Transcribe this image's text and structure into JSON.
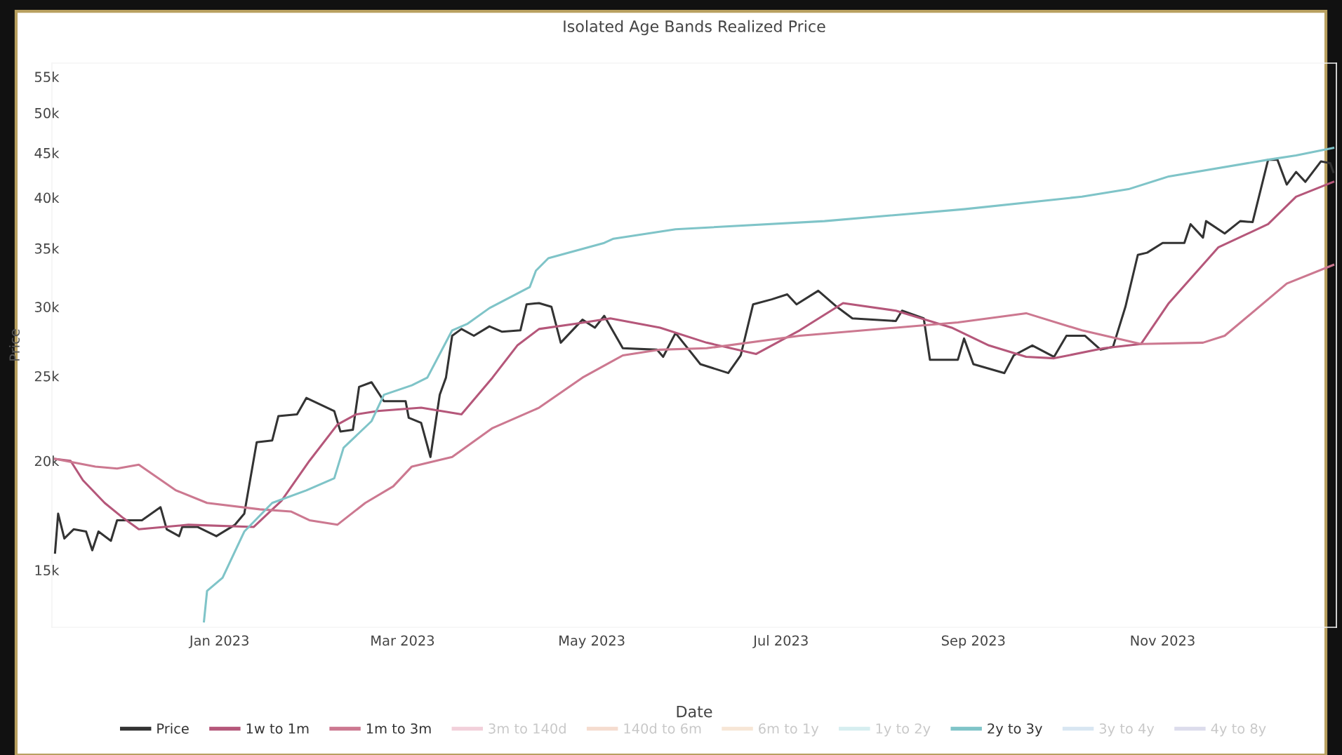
{
  "chart_data": {
    "type": "line",
    "title": "Isolated Age Bands Realized Price",
    "xlabel": "Date",
    "ylabel": "Price",
    "log": "y",
    "grid": false,
    "legend": "bottom",
    "marker": "none",
    "line_style": "solid",
    "xlim": [
      "2022-11-08",
      "2023-12-27"
    ],
    "xticks": [
      {
        "value": "2023-01-01",
        "label": "Jan 2023"
      },
      {
        "value": "2023-03-01",
        "label": "Mar 2023"
      },
      {
        "value": "2023-05-01",
        "label": "May 2023"
      },
      {
        "value": "2023-07-01",
        "label": "Jul 2023"
      },
      {
        "value": "2023-09-01",
        "label": "Sep 2023"
      },
      {
        "value": "2023-11-01",
        "label": "Nov 2023"
      }
    ],
    "ylim": [
      12900,
      57000
    ],
    "yticks": [
      {
        "value": 15000,
        "label": "15k"
      },
      {
        "value": 20000,
        "label": "20k"
      },
      {
        "value": 25000,
        "label": "25k"
      },
      {
        "value": 30000,
        "label": "30k"
      },
      {
        "value": 35000,
        "label": "35k"
      },
      {
        "value": 40000,
        "label": "40k"
      },
      {
        "value": 45000,
        "label": "45k"
      },
      {
        "value": 50000,
        "label": "50k"
      },
      {
        "value": 55000,
        "label": "55k"
      }
    ],
    "series": [
      {
        "name": "Price",
        "color": "#333333",
        "x": [
          "2022-11-09",
          "2022-11-10",
          "2022-11-12",
          "2022-11-15",
          "2022-11-19",
          "2022-11-21",
          "2022-11-23",
          "2022-11-27",
          "2022-11-29",
          "2022-12-07",
          "2022-12-13",
          "2022-12-15",
          "2022-12-19",
          "2022-12-20",
          "2022-12-25",
          "2022-12-31",
          "2023-01-06",
          "2023-01-09",
          "2023-01-13",
          "2023-01-18",
          "2023-01-20",
          "2023-01-26",
          "2023-01-29",
          "2023-02-07",
          "2023-02-09",
          "2023-02-13",
          "2023-02-15",
          "2023-02-19",
          "2023-02-23",
          "2023-03-02",
          "2023-03-03",
          "2023-03-07",
          "2023-03-10",
          "2023-03-13",
          "2023-03-15",
          "2023-03-17",
          "2023-03-20",
          "2023-03-24",
          "2023-03-29",
          "2023-04-02",
          "2023-04-08",
          "2023-04-10",
          "2023-04-14",
          "2023-04-18",
          "2023-04-21",
          "2023-04-28",
          "2023-05-02",
          "2023-05-05",
          "2023-05-11",
          "2023-05-22",
          "2023-05-24",
          "2023-05-28",
          "2023-06-05",
          "2023-06-14",
          "2023-06-18",
          "2023-06-22",
          "2023-06-28",
          "2023-07-03",
          "2023-07-06",
          "2023-07-13",
          "2023-07-19",
          "2023-07-24",
          "2023-08-07",
          "2023-08-09",
          "2023-08-16",
          "2023-08-18",
          "2023-08-27",
          "2023-08-29",
          "2023-09-01",
          "2023-09-11",
          "2023-09-14",
          "2023-09-20",
          "2023-09-27",
          "2023-10-01",
          "2023-10-07",
          "2023-10-12",
          "2023-10-16",
          "2023-10-20",
          "2023-10-24",
          "2023-10-27",
          "2023-11-01",
          "2023-11-08",
          "2023-11-10",
          "2023-11-14",
          "2023-11-15",
          "2023-11-21",
          "2023-11-26",
          "2023-11-30",
          "2023-12-05",
          "2023-12-08",
          "2023-12-11",
          "2023-12-14",
          "2023-12-17",
          "2023-12-22",
          "2023-12-25",
          "2023-12-26"
        ],
        "values": [
          15700,
          17400,
          16300,
          16700,
          16600,
          15800,
          16600,
          16200,
          17100,
          17100,
          17700,
          16700,
          16400,
          16800,
          16800,
          16400,
          16900,
          17400,
          21000,
          21100,
          22500,
          22600,
          23600,
          22800,
          21600,
          21700,
          24300,
          24600,
          23400,
          23400,
          22400,
          22100,
          20200,
          23800,
          24900,
          27800,
          28300,
          27800,
          28500,
          28100,
          28200,
          30200,
          30300,
          30000,
          27300,
          29000,
          28400,
          29300,
          26900,
          26800,
          26300,
          28000,
          25800,
          25200,
          26400,
          30200,
          30600,
          31000,
          30200,
          31300,
          30000,
          29100,
          28900,
          29700,
          29100,
          26100,
          26100,
          27600,
          25800,
          25200,
          26400,
          27100,
          26300,
          27800,
          27800,
          26800,
          27000,
          30000,
          34400,
          34600,
          35500,
          35500,
          37300,
          36000,
          37600,
          36400,
          37600,
          37500,
          44200,
          44200,
          41400,
          42800,
          41700,
          44000,
          43800,
          42800
        ]
      },
      {
        "name": "1w to 1m",
        "color": "#b5577a",
        "x": [
          "2022-11-09",
          "2022-11-14",
          "2022-11-18",
          "2022-11-25",
          "2022-12-01",
          "2022-12-06",
          "2022-12-22",
          "2023-01-12",
          "2023-01-21",
          "2023-01-30",
          "2023-02-08",
          "2023-02-14",
          "2023-02-21",
          "2023-03-07",
          "2023-03-20",
          "2023-03-30",
          "2023-04-07",
          "2023-04-14",
          "2023-04-26",
          "2023-05-07",
          "2023-05-23",
          "2023-06-07",
          "2023-06-23",
          "2023-07-07",
          "2023-07-21",
          "2023-08-07",
          "2023-08-25",
          "2023-09-06",
          "2023-09-18",
          "2023-09-27",
          "2023-10-13",
          "2023-10-25",
          "2023-11-03",
          "2023-11-19",
          "2023-12-05",
          "2023-12-14",
          "2023-12-26"
        ],
        "values": [
          20100,
          20000,
          19000,
          17900,
          17200,
          16700,
          16900,
          16800,
          18000,
          20000,
          22000,
          22600,
          22800,
          23000,
          22600,
          24900,
          27100,
          28300,
          28700,
          29100,
          28400,
          27300,
          26500,
          28200,
          30300,
          29700,
          28400,
          27100,
          26300,
          26200,
          26900,
          27200,
          30300,
          35100,
          37300,
          40100,
          41700
        ]
      },
      {
        "name": "1m to 3m",
        "color": "#cc7890",
        "x": [
          "2022-11-09",
          "2022-11-22",
          "2022-11-29",
          "2022-12-06",
          "2022-12-18",
          "2022-12-28",
          "2023-01-14",
          "2023-01-24",
          "2023-01-30",
          "2023-02-08",
          "2023-02-17",
          "2023-02-26",
          "2023-03-04",
          "2023-03-17",
          "2023-03-30",
          "2023-04-14",
          "2023-04-28",
          "2023-05-11",
          "2023-05-23",
          "2023-06-07",
          "2023-07-07",
          "2023-08-07",
          "2023-08-27",
          "2023-09-18",
          "2023-10-06",
          "2023-10-25",
          "2023-11-14",
          "2023-11-21",
          "2023-12-11",
          "2023-12-26"
        ],
        "values": [
          20100,
          19700,
          19600,
          19800,
          18500,
          17900,
          17600,
          17500,
          17100,
          16900,
          17900,
          18700,
          19700,
          20200,
          21800,
          23000,
          24900,
          26400,
          26800,
          26900,
          27800,
          28400,
          28800,
          29500,
          28200,
          27200,
          27300,
          27800,
          31900,
          33500
        ]
      },
      {
        "name": "3m to 140d",
        "color": "#f2d0da"
      },
      {
        "name": "140d to 6m",
        "color": "#f5dccf"
      },
      {
        "name": "6m to 1y",
        "color": "#f7e6d6"
      },
      {
        "name": "1y to 2y",
        "color": "#d6eef0"
      },
      {
        "name": "2y to 3y",
        "color": "#7fc4c8",
        "x": [
          "2022-12-27",
          "2022-12-28",
          "2023-01-02",
          "2023-01-09",
          "2023-01-18",
          "2023-01-29",
          "2023-02-07",
          "2023-02-10",
          "2023-02-19",
          "2023-02-23",
          "2023-03-04",
          "2023-03-09",
          "2023-03-17",
          "2023-03-22",
          "2023-03-29",
          "2023-04-11",
          "2023-04-13",
          "2023-04-17",
          "2023-05-05",
          "2023-05-08",
          "2023-05-28",
          "2023-07-15",
          "2023-08-29",
          "2023-10-06",
          "2023-10-21",
          "2023-11-03",
          "2023-12-05",
          "2023-12-14",
          "2023-12-26"
        ],
        "values": [
          13100,
          14200,
          14700,
          16600,
          17900,
          18500,
          19100,
          20700,
          22200,
          23800,
          24400,
          24900,
          28200,
          28700,
          29900,
          31600,
          33000,
          34100,
          35500,
          35900,
          36800,
          37600,
          38800,
          40100,
          40900,
          42300,
          44200,
          44700,
          45600
        ]
      },
      {
        "name": "3y to 4y",
        "color": "#d8e6f2"
      },
      {
        "name": "4y to 8y",
        "color": "#dcdcec"
      }
    ]
  }
}
